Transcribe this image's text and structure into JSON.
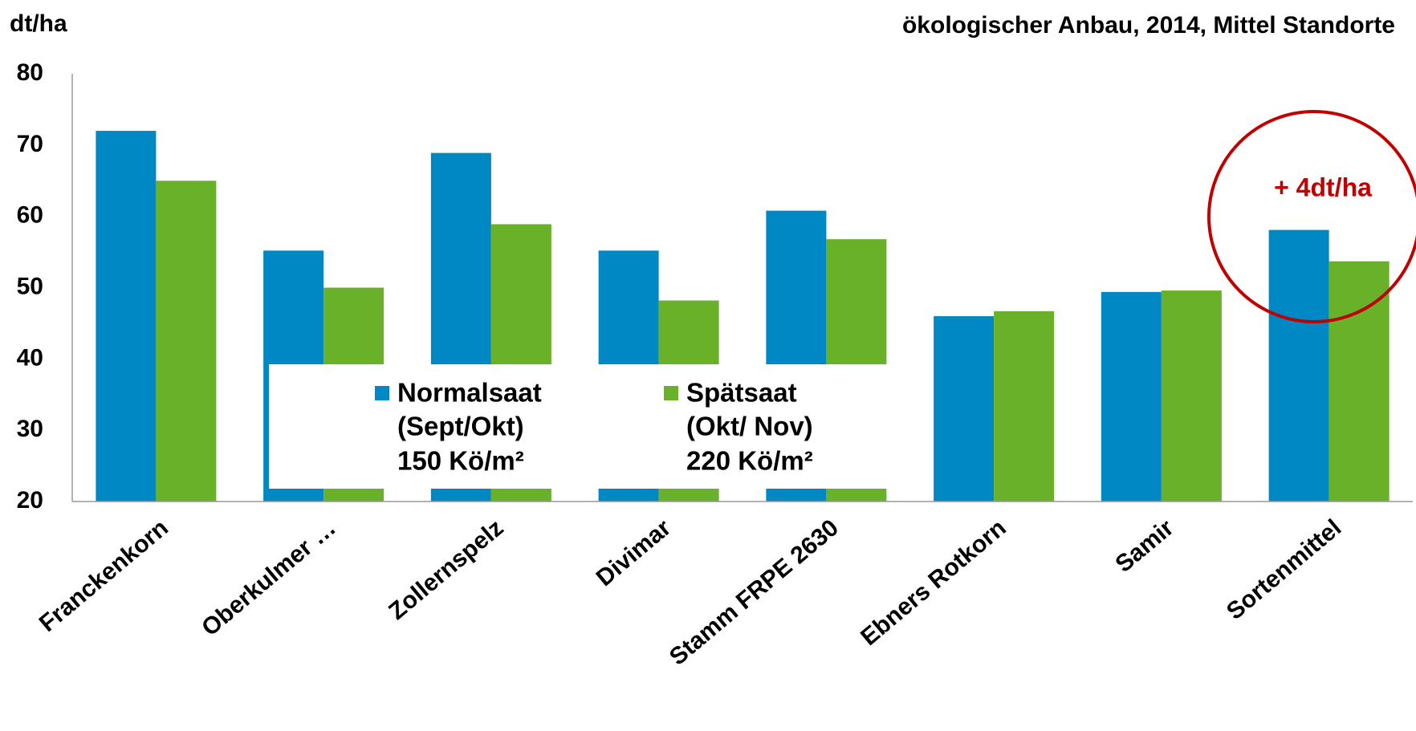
{
  "chart_data": {
    "type": "bar",
    "title": "ökologischer Anbau, 2014, Mittel Standorte",
    "y_axis_label": "dt/ha",
    "categories": [
      "Franckenkorn",
      "Oberkulmer …",
      "Zollernspelz",
      "Divimar",
      "Stamm  FRPE 2630",
      "Ebners Rotkorn",
      "Samir",
      "Sortenmittel"
    ],
    "series": [
      {
        "name": "Normalsaat",
        "description": [
          "(Sept/Okt)",
          "150 Kö/m²"
        ],
        "color": "#0088c4",
        "values": [
          72,
          55.2,
          68.9,
          55.2,
          60.8,
          46,
          49.4,
          58.1
        ]
      },
      {
        "name": "Spätsaat",
        "description": [
          "(Okt/ Nov)",
          "220 Kö/m²"
        ],
        "color": "#6ab12a",
        "values": [
          65,
          50,
          58.9,
          48.2,
          56.8,
          46.7,
          49.6,
          53.7
        ]
      }
    ],
    "ylim": [
      20,
      80
    ],
    "yticks": [
      20,
      30,
      40,
      50,
      60,
      70,
      80
    ],
    "grid": false,
    "annotation": {
      "text": "+ 4dt/ha",
      "color": "#c00000"
    }
  }
}
